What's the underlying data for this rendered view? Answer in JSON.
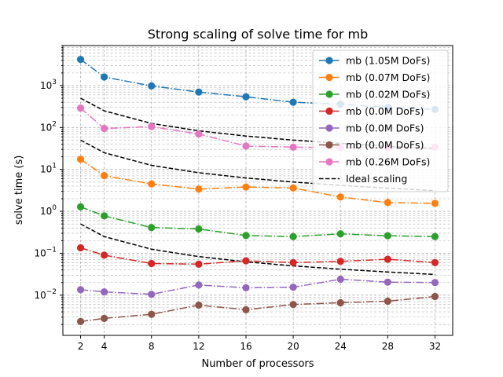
{
  "chart_data": {
    "type": "line",
    "title": "Strong scaling of solve time for mb",
    "xlabel": "Number of processors",
    "ylabel": "solve time (s)",
    "x": [
      2,
      4,
      8,
      12,
      16,
      20,
      24,
      28,
      32
    ],
    "xticks": [
      2,
      4,
      8,
      12,
      16,
      20,
      24,
      28,
      32
    ],
    "xlim": [
      0.5,
      33.5
    ],
    "yscale": "log",
    "ylim": [
      0.0011,
      9000
    ],
    "yticks": [
      {
        "value": 0.01,
        "label": "10",
        "exp": "−2"
      },
      {
        "value": 0.1,
        "label": "10",
        "exp": "−1"
      },
      {
        "value": 1,
        "label": "10",
        "exp": "0"
      },
      {
        "value": 10,
        "label": "10",
        "exp": "1"
      },
      {
        "value": 100,
        "label": "10",
        "exp": "2"
      },
      {
        "value": 1000,
        "label": "10",
        "exp": "3"
      }
    ],
    "grid": true,
    "legend_position": "top-right",
    "series": [
      {
        "name": "mb (1.05M DoFs)",
        "color": "#1f77b4",
        "values": [
          4200,
          1600,
          980,
          700,
          540,
          400,
          360,
          300,
          270
        ]
      },
      {
        "name": "mb (0.07M DoFs)",
        "color": "#ff7f0e",
        "values": [
          17.5,
          7.1,
          4.5,
          3.4,
          3.8,
          3.6,
          2.2,
          1.62,
          1.55
        ]
      },
      {
        "name": "mb (0.02M DoFs)",
        "color": "#2ca02c",
        "values": [
          1.28,
          0.78,
          0.41,
          0.38,
          0.265,
          0.25,
          0.29,
          0.262,
          0.25
        ]
      },
      {
        "name": "mb (0.0M DoFs)",
        "color": "#d62728",
        "values": [
          0.135,
          0.09,
          0.057,
          0.055,
          0.066,
          0.06,
          0.064,
          0.072,
          0.06
        ]
      },
      {
        "name": "mb (0.0M DoFs)",
        "color": "#9467bd",
        "values": [
          0.0135,
          0.012,
          0.0105,
          0.0175,
          0.015,
          0.0155,
          0.024,
          0.0205,
          0.02
        ]
      },
      {
        "name": "mb (0.0M DoFs)",
        "color": "#8c564b",
        "values": [
          0.00235,
          0.0028,
          0.0035,
          0.0058,
          0.0045,
          0.006,
          0.0066,
          0.0072,
          0.0093
        ]
      },
      {
        "name": "mb (0.26M DoFs)",
        "color": "#e377c2",
        "values": [
          290,
          95,
          105,
          70,
          36,
          34,
          33,
          33,
          34
        ]
      }
    ],
    "ideal_series": {
      "name": "Ideal scaling",
      "color": "#000000",
      "lines": [
        [
          500,
          250,
          125,
          83.3,
          62.5,
          50,
          41.7,
          35.7,
          31.25
        ],
        [
          50,
          25,
          12.5,
          8.33,
          6.25,
          5,
          4.17,
          3.57,
          3.125
        ],
        [
          0.5,
          0.25,
          0.125,
          0.0833,
          0.0625,
          0.05,
          0.0417,
          0.0357,
          0.03125
        ]
      ]
    }
  }
}
